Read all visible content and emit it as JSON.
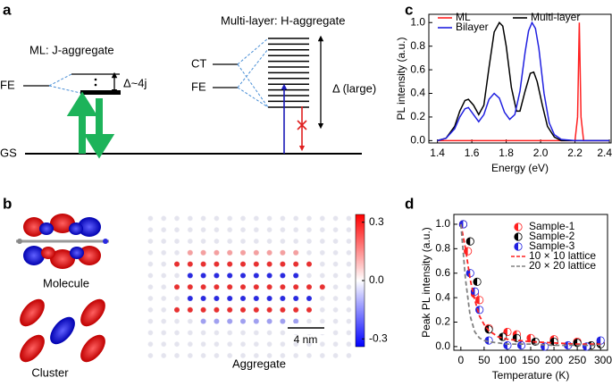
{
  "panel_labels": {
    "a": "a",
    "b": "b",
    "c": "c",
    "d": "d"
  },
  "diagram": {
    "ml_title": "ML: J-aggregate",
    "ml_fe": "FE",
    "ml_splitting": "Δ~4j",
    "gs": "GS",
    "multi_title": "Multi-layer: H-aggregate",
    "ct": "CT",
    "multi_fe": "FE",
    "multi_splitting": "Δ (large)"
  },
  "images": {
    "molecule": "Molecule",
    "cluster": "Cluster",
    "aggregate": "Aggregate",
    "scale_bar": "4 nm"
  },
  "colorbar": {
    "ylim": [
      -0.34,
      0.34
    ],
    "yticks": [
      0.3,
      {
        "value": 0,
        "label": "0.0"
      },
      -0.3
    ],
    "colors": [
      "#0000ff",
      "#ffffff",
      "#ff0000"
    ]
  },
  "chart_data": [
    {
      "type": "line",
      "xlabel": "Energy (eV)",
      "ylabel": "PL intensity (a.u.)",
      "xlim": [
        1.35,
        2.41
      ],
      "ylim": [
        -0.02,
        1.07
      ],
      "xticks": [
        1.4,
        1.6,
        1.8,
        {
          "value": 2.0,
          "label": "2.0"
        },
        2.2,
        2.4
      ],
      "yticks": [
        {
          "value": 0,
          "label": "0.0"
        },
        0.2,
        0.4,
        0.6,
        0.8,
        {
          "value": 1.0,
          "label": "1.0"
        }
      ],
      "legend": "upper left",
      "series": [
        {
          "name": "ML",
          "color": "#ff2020",
          "x": [
            1.4,
            2.0,
            2.2,
            2.215,
            2.225,
            2.235,
            2.25,
            2.3,
            2.4
          ],
          "values": [
            0,
            0,
            0,
            0.2,
            1.0,
            0.2,
            0,
            0,
            0
          ]
        },
        {
          "name": "Multi-layer",
          "color": "#000000",
          "x": [
            1.4,
            1.45,
            1.5,
            1.53,
            1.56,
            1.58,
            1.61,
            1.64,
            1.67,
            1.7,
            1.73,
            1.76,
            1.78,
            1.8,
            1.83,
            1.86,
            1.88,
            1.91,
            1.94,
            1.96,
            1.98,
            2.01,
            2.04,
            2.08,
            2.12,
            2.2,
            2.3,
            2.4
          ],
          "values": [
            0,
            0.02,
            0.12,
            0.25,
            0.34,
            0.35,
            0.3,
            0.22,
            0.3,
            0.62,
            0.92,
            1.0,
            0.97,
            0.8,
            0.45,
            0.25,
            0.25,
            0.42,
            0.57,
            0.58,
            0.5,
            0.3,
            0.12,
            0.03,
            0,
            0,
            0,
            0
          ]
        },
        {
          "name": "Bilayer",
          "color": "#2020e0",
          "x": [
            1.4,
            1.45,
            1.5,
            1.53,
            1.56,
            1.58,
            1.61,
            1.64,
            1.67,
            1.7,
            1.73,
            1.76,
            1.79,
            1.82,
            1.85,
            1.88,
            1.91,
            1.93,
            1.95,
            1.97,
            1.99,
            2.02,
            2.05,
            2.08,
            2.12,
            2.2,
            2.3,
            2.4
          ],
          "values": [
            0,
            0.02,
            0.1,
            0.2,
            0.27,
            0.28,
            0.22,
            0.16,
            0.22,
            0.35,
            0.4,
            0.36,
            0.24,
            0.18,
            0.22,
            0.42,
            0.75,
            0.93,
            1.0,
            0.95,
            0.78,
            0.4,
            0.15,
            0.05,
            0.01,
            0,
            0,
            0
          ]
        }
      ]
    },
    {
      "type": "scatter",
      "xlabel": "Temperature (K)",
      "ylabel": "Peak PL intensity (a.u.)",
      "xlim": [
        -15,
        315
      ],
      "ylim": [
        -0.03,
        1.08
      ],
      "xticks": [
        0,
        50,
        100,
        150,
        200,
        250,
        300
      ],
      "yticks": [
        {
          "value": 0,
          "label": "0.0"
        },
        0.2,
        0.4,
        0.6,
        0.8,
        {
          "value": 1.0,
          "label": "1.0"
        }
      ],
      "legend": "upper right",
      "series": [
        {
          "name": "Sample-1",
          "color": "#ff2020",
          "mode": "markers",
          "x": [
            5,
            15,
            30,
            40,
            60,
            100,
            120,
            150,
            200,
            250,
            300
          ],
          "values": [
            1.0,
            0.78,
            0.43,
            0.38,
            0.15,
            0.12,
            0.1,
            0.07,
            0.06,
            0.04,
            0.03
          ]
        },
        {
          "name": "Sample-2",
          "color": "#000000",
          "mode": "markers",
          "x": [
            5,
            20,
            35,
            60,
            90,
            120,
            160,
            200,
            250,
            280,
            300
          ],
          "values": [
            1.0,
            0.86,
            0.53,
            0.14,
            0.08,
            0.07,
            0.04,
            0.04,
            0.03,
            0.01,
            0.02
          ]
        },
        {
          "name": "Sample-3",
          "color": "#2020e0",
          "mode": "markers",
          "x": [
            5,
            20,
            30,
            40,
            60,
            100,
            130,
            180,
            230,
            270,
            300
          ],
          "values": [
            1.0,
            0.6,
            0.45,
            0.3,
            0.05,
            0.01,
            0.01,
            0,
            0.01,
            0,
            0.05
          ]
        },
        {
          "name": "10 × 10 lattice",
          "color": "#ff2020",
          "mode": "dashed",
          "x": [
            0,
            10,
            20,
            30,
            40,
            50,
            60,
            80,
            100,
            150,
            200,
            250,
            300
          ],
          "values": [
            1.0,
            0.8,
            0.55,
            0.38,
            0.25,
            0.18,
            0.13,
            0.08,
            0.06,
            0.04,
            0.03,
            0.02,
            0.02
          ]
        },
        {
          "name": "20 × 20 lattice",
          "color": "#808080",
          "mode": "dashed",
          "x": [
            0,
            10,
            20,
            30,
            40,
            50,
            60,
            80,
            100,
            150,
            200,
            250,
            300
          ],
          "values": [
            1.0,
            0.55,
            0.25,
            0.12,
            0.07,
            0.05,
            0.04,
            0.03,
            0.02,
            0.02,
            0.01,
            0.01,
            0.01
          ]
        }
      ]
    }
  ]
}
